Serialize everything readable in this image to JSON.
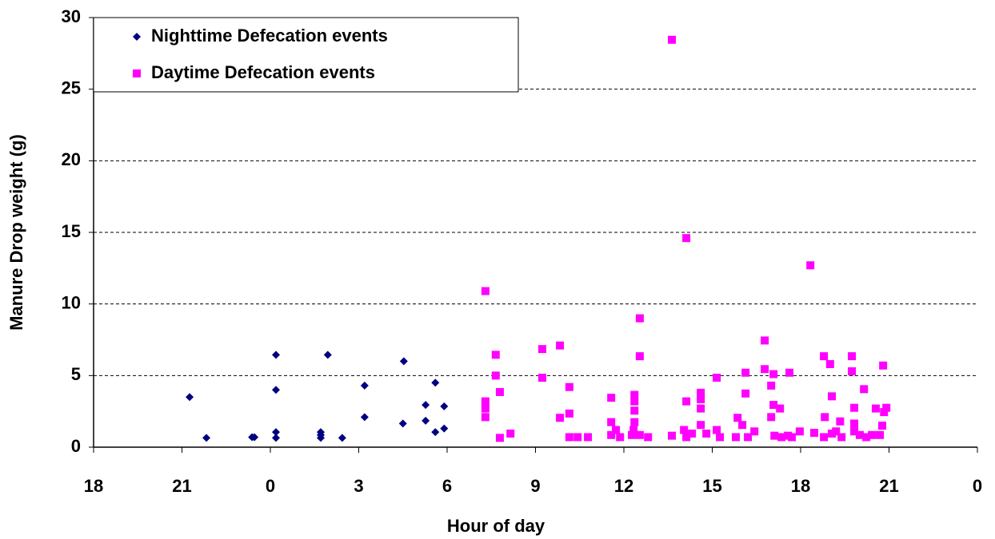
{
  "chart_data": {
    "type": "scatter",
    "x_label": "Hour of day",
    "y_label": "Manure Drop weight (g)",
    "xlim": [
      18,
      48
    ],
    "xticks": [
      18,
      21,
      {
        "value": 24,
        "label": "0"
      },
      {
        "value": 27,
        "label": "3"
      },
      {
        "value": 30,
        "label": "6"
      },
      {
        "value": 33,
        "label": "9"
      },
      {
        "value": 36,
        "label": "12"
      },
      {
        "value": 39,
        "label": "15"
      },
      {
        "value": 42,
        "label": "18"
      },
      {
        "value": 45,
        "label": "21"
      },
      {
        "value": 48,
        "label": "0"
      }
    ],
    "ylim": [
      0,
      30
    ],
    "yticks": [
      0,
      5,
      10,
      15,
      20,
      25,
      30
    ],
    "grid": true,
    "legend": "top-left",
    "series": [
      {
        "name": "Nighttime Defecation events",
        "color": "#000080",
        "marker": "diamond",
        "x": [
          21.26,
          21.83,
          23.38,
          23.46,
          24.19,
          24.19,
          24.19,
          24.19,
          25.71,
          25.71,
          25.71,
          25.95,
          26.44,
          27.2,
          27.2,
          28.53,
          28.5,
          29.27,
          29.27,
          29.6,
          29.6,
          29.9,
          29.9
        ],
        "values": [
          3.5,
          0.65,
          0.7,
          0.7,
          6.45,
          4.0,
          1.05,
          0.65,
          0.85,
          1.05,
          0.65,
          6.45,
          0.65,
          4.3,
          2.1,
          6.0,
          1.65,
          2.95,
          1.85,
          4.5,
          1.05,
          2.85,
          1.3
        ]
      },
      {
        "name": "Daytime Defecation events",
        "color": "#ff00ff",
        "marker": "square",
        "x": [
          31.3,
          31.3,
          31.3,
          31.3,
          31.65,
          31.65,
          31.79,
          31.79,
          32.15,
          33.23,
          33.23,
          33.83,
          33.83,
          34.15,
          34.15,
          34.15,
          34.43,
          34.78,
          35.57,
          35.57,
          35.57,
          35.73,
          35.87,
          36.27,
          36.33,
          36.36,
          36.36,
          36.36,
          36.36,
          36.54,
          36.54,
          36.54,
          36.82,
          37.63,
          37.63,
          38.04,
          38.12,
          38.12,
          38.12,
          38.31,
          38.61,
          38.61,
          38.61,
          38.61,
          38.8,
          39.15,
          39.15,
          39.26,
          39.8,
          39.86,
          40.02,
          40.13,
          40.13,
          40.21,
          40.43,
          40.78,
          40.78,
          41.0,
          41.0,
          41.08,
          41.08,
          41.11,
          41.3,
          41.35,
          41.57,
          41.62,
          41.7,
          41.97,
          42.33,
          42.46,
          42.79,
          42.82,
          42.79,
          43.0,
          43.06,
          43.06,
          43.2,
          43.39,
          43.34,
          43.74,
          43.74,
          43.82,
          43.82,
          43.82,
          44.01,
          44.15,
          44.23,
          44.42,
          44.55,
          44.69,
          44.77,
          44.8,
          44.83,
          44.91
        ],
        "values": [
          10.9,
          3.2,
          2.7,
          2.1,
          6.45,
          5.0,
          3.85,
          0.65,
          0.95,
          6.85,
          4.85,
          7.1,
          2.05,
          4.2,
          2.35,
          0.7,
          0.7,
          0.7,
          3.45,
          1.75,
          0.85,
          1.2,
          0.7,
          0.85,
          1.2,
          3.2,
          3.65,
          2.55,
          1.75,
          9.0,
          6.35,
          0.85,
          0.7,
          28.45,
          0.8,
          1.2,
          3.2,
          14.6,
          0.7,
          0.95,
          3.8,
          3.35,
          2.7,
          1.55,
          0.95,
          4.85,
          1.2,
          0.7,
          0.7,
          2.05,
          1.55,
          5.2,
          3.75,
          0.7,
          1.1,
          7.45,
          5.45,
          4.3,
          2.1,
          5.1,
          2.95,
          0.8,
          2.7,
          0.7,
          0.8,
          5.2,
          0.7,
          1.1,
          12.7,
          1.0,
          6.35,
          2.1,
          0.7,
          5.8,
          3.55,
          0.95,
          1.1,
          0.7,
          1.8,
          6.35,
          5.3,
          2.75,
          1.65,
          1.1,
          0.85,
          4.05,
          0.7,
          0.85,
          2.7,
          0.85,
          1.5,
          5.7,
          2.45,
          2.75
        ]
      }
    ]
  }
}
